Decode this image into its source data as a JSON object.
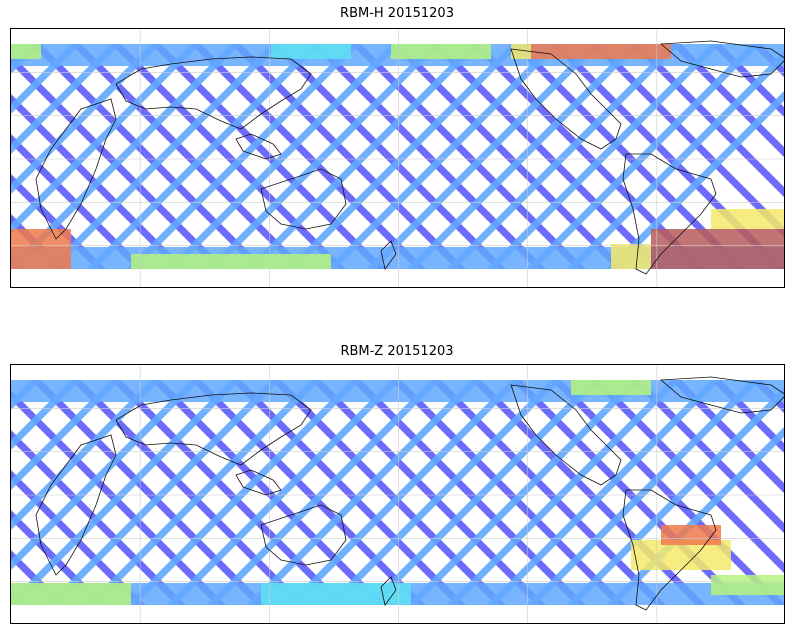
{
  "figure": {
    "panels": [
      {
        "id": "top",
        "title": "RBM-H 20151203",
        "palette": [
          "#5b5cf8",
          "#62a7ff",
          "#5de0f2",
          "#b4f37a",
          "#f5e969",
          "#f07a4c",
          "#b75a5a"
        ]
      },
      {
        "id": "bottom",
        "title": "RBM-Z 20151203",
        "palette": [
          "#5b5cf8",
          "#62a7ff",
          "#5de0f2",
          "#b4f37a",
          "#f5e969",
          "#f07a4c"
        ]
      }
    ]
  }
}
